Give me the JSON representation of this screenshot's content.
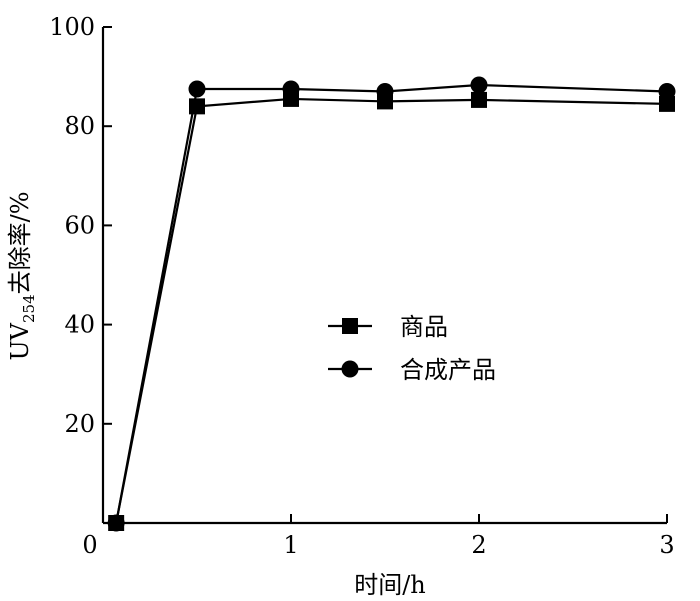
{
  "chart_data": {
    "type": "line",
    "xlabel": "时间/h",
    "ylabel": {
      "prefix": "UV",
      "subscript": "254",
      "suffix": "去除率/%"
    },
    "xlim": [
      0,
      3
    ],
    "ylim": [
      0,
      100
    ],
    "x_ticks": [
      0,
      1,
      2,
      3
    ],
    "y_ticks": [
      0,
      20,
      40,
      60,
      80,
      100
    ],
    "x_tick_labels": [
      "0",
      "1",
      "2",
      "3"
    ],
    "y_tick_labels": [
      "20",
      "40",
      "60",
      "80",
      "100"
    ],
    "grid": false,
    "legend_position": "center",
    "series": [
      {
        "name": "商品",
        "marker": "square",
        "x": [
          0.07,
          0.5,
          1,
          1.5,
          2,
          3
        ],
        "y": [
          0,
          84,
          85.5,
          85,
          85.3,
          84.5
        ]
      },
      {
        "name": "合成产品",
        "marker": "circle",
        "x": [
          0.07,
          0.5,
          1,
          1.5,
          2,
          3
        ],
        "y": [
          0,
          87.5,
          87.5,
          87,
          88.3,
          87
        ]
      }
    ],
    "colors": {
      "line": "#000000",
      "marker": "#000000"
    }
  }
}
